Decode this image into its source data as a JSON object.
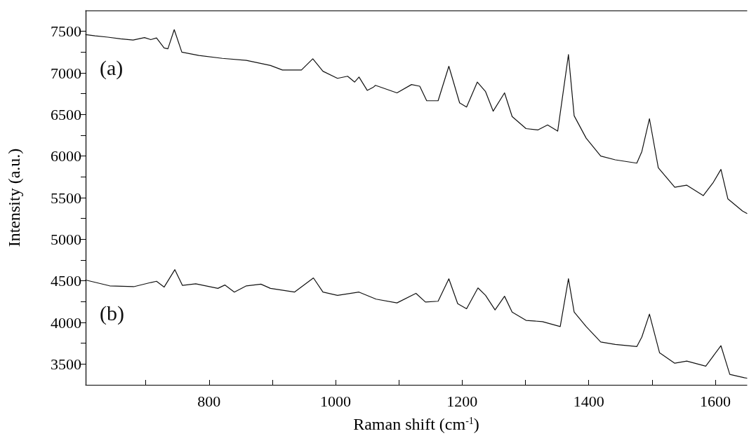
{
  "chart_data": {
    "type": "line",
    "xlabel": "Raman shift (cm$^{-1}$)",
    "ylabel": "Intensity (a.u.)",
    "xlim": [
      605,
      1650
    ],
    "ylim": [
      3250,
      7750
    ],
    "xticks": [
      {
        "value": 700,
        "label": null
      },
      800,
      {
        "value": 900,
        "label": null
      },
      1000,
      {
        "value": 1100,
        "label": null
      },
      1200,
      {
        "value": 1300,
        "label": null
      },
      1400,
      {
        "value": 1500,
        "label": null
      },
      1600
    ],
    "yticks": [
      3500,
      {
        "value": 3750,
        "label": null
      },
      4000,
      {
        "value": 4250,
        "label": null
      },
      4500,
      {
        "value": 4750,
        "label": null
      },
      5000,
      {
        "value": 5250,
        "label": null
      },
      5500,
      {
        "value": 5750,
        "label": null
      },
      6000,
      {
        "value": 6250,
        "label": null
      },
      6500,
      {
        "value": 6750,
        "label": null
      },
      7000,
      {
        "value": 7250,
        "label": null
      },
      7500
    ],
    "grid": false,
    "legend": false,
    "marker": "none",
    "line_style": "solid",
    "series": [
      {
        "name": "(a)",
        "color": "#111111",
        "x": [
          605,
          620,
          640,
          660,
          680,
          698,
          708,
          717,
          729,
          735,
          745,
          757,
          784,
          821,
          859,
          897,
          916,
          946,
          964,
          980,
          1003,
          1019,
          1030,
          1037,
          1050,
          1060,
          1063,
          1097,
          1120,
          1133,
          1144,
          1162,
          1179,
          1196,
          1207,
          1224,
          1237,
          1249,
          1267,
          1279,
          1301,
          1320,
          1335,
          1351,
          1368,
          1377,
          1396,
          1419,
          1442,
          1476,
          1484,
          1496,
          1510,
          1536,
          1555,
          1581,
          1597,
          1609,
          1620,
          1643,
          1650
        ],
        "values": [
          7460,
          7445,
          7430,
          7410,
          7395,
          7425,
          7400,
          7420,
          7300,
          7290,
          7520,
          7250,
          7210,
          7175,
          7150,
          7090,
          7035,
          7035,
          7170,
          7020,
          6935,
          6960,
          6890,
          6950,
          6790,
          6830,
          6850,
          6760,
          6860,
          6840,
          6665,
          6665,
          7080,
          6640,
          6590,
          6890,
          6775,
          6540,
          6760,
          6475,
          6330,
          6315,
          6375,
          6300,
          7220,
          6485,
          6215,
          6000,
          5955,
          5915,
          6055,
          6450,
          5860,
          5625,
          5650,
          5525,
          5685,
          5840,
          5485,
          5340,
          5310
        ]
      },
      {
        "name": "(b)",
        "color": "#111111",
        "x": [
          605,
          643,
          681,
          708,
          717,
          729,
          746,
          758,
          779,
          814,
          825,
          840,
          859,
          882,
          897,
          935,
          965,
          980,
          1003,
          1037,
          1064,
          1097,
          1127,
          1142,
          1162,
          1179,
          1193,
          1207,
          1225,
          1237,
          1252,
          1267,
          1279,
          1301,
          1327,
          1355,
          1368,
          1377,
          1396,
          1419,
          1442,
          1476,
          1484,
          1496,
          1512,
          1536,
          1555,
          1585,
          1609,
          1623,
          1646,
          1650
        ],
        "values": [
          4510,
          4440,
          4430,
          4480,
          4495,
          4425,
          4635,
          4445,
          4465,
          4410,
          4450,
          4365,
          4440,
          4460,
          4410,
          4365,
          4535,
          4365,
          4325,
          4365,
          4280,
          4235,
          4350,
          4245,
          4255,
          4525,
          4225,
          4165,
          4415,
          4325,
          4150,
          4315,
          4125,
          4025,
          4010,
          3950,
          4525,
          4125,
          3950,
          3765,
          3735,
          3710,
          3825,
          4100,
          3635,
          3510,
          3535,
          3475,
          3720,
          3375,
          3335,
          3330
        ]
      }
    ]
  }
}
